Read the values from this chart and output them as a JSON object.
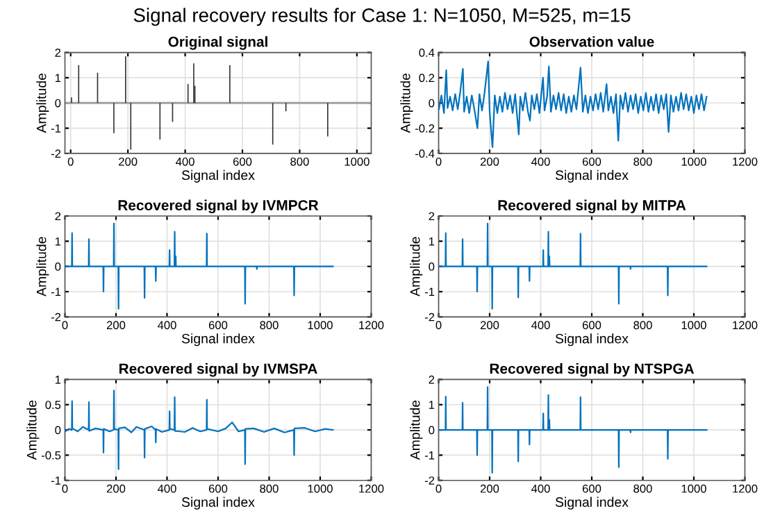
{
  "chart_data": [
    {
      "type": "bar",
      "title": "Original signal",
      "xlabel": "Signal index",
      "ylabel": "Amplitude",
      "annotations": [
        "Signal recovery results for Case 1: N=1050, M=525, m=15"
      ],
      "x": [
        3,
        28,
        94,
        151,
        192,
        210,
        312,
        356,
        410,
        430,
        434,
        556,
        706,
        752,
        898
      ],
      "series": [
        {
          "color": "#333333",
          "values": [
            0.22,
            1.5,
            1.2,
            -1.2,
            1.85,
            -1.85,
            -1.45,
            -0.75,
            0.75,
            1.57,
            0.68,
            1.5,
            -1.65,
            -0.33,
            -1.33
          ]
        }
      ],
      "ref_lines": [
        {
          "axis": "y",
          "value": 0,
          "color": "#a0a0a0"
        }
      ],
      "xlim": [
        -20,
        1050
      ],
      "ylim": [
        -2,
        2
      ],
      "xticks": [
        0,
        200,
        400,
        600,
        800,
        1000
      ],
      "yticks": [
        -2,
        -1,
        0,
        1,
        2
      ],
      "grid": true
    },
    {
      "type": "line",
      "title": "Observation value",
      "xlabel": "Signal index",
      "ylabel": "Amplitude",
      "series": [
        {
          "color": "#0072bd",
          "x": [
            1,
            11,
            21,
            30,
            35,
            45,
            55,
            65,
            75,
            85,
            95,
            100,
            110,
            120,
            130,
            140,
            152,
            160,
            170,
            180,
            194,
            200,
            211,
            220,
            230,
            240,
            250,
            260,
            270,
            280,
            290,
            300,
            314,
            320,
            330,
            340,
            350,
            358,
            365,
            375,
            385,
            395,
            409,
            415,
            425,
            432,
            440,
            450,
            460,
            470,
            480,
            490,
            500,
            510,
            520,
            530,
            540,
            556,
            565,
            575,
            585,
            595,
            605,
            615,
            625,
            635,
            645,
            658,
            665,
            675,
            685,
            695,
            704,
            712,
            722,
            732,
            742,
            752,
            762,
            772,
            782,
            792,
            802,
            812,
            822,
            832,
            842,
            852,
            862,
            872,
            882,
            892,
            901,
            910,
            920,
            930,
            940,
            950,
            960,
            970,
            980,
            990,
            1000,
            1010,
            1020,
            1030,
            1040,
            1050
          ],
          "values": [
            -0.05,
            0.06,
            -0.08,
            0.26,
            -0.04,
            0.05,
            -0.06,
            0.07,
            -0.05,
            0.09,
            0.27,
            -0.07,
            0.05,
            -0.08,
            0.06,
            -0.05,
            -0.2,
            0.07,
            -0.06,
            0.08,
            0.33,
            -0.07,
            -0.35,
            0.06,
            -0.08,
            0.05,
            -0.07,
            0.08,
            -0.05,
            0.06,
            -0.08,
            0.07,
            -0.25,
            0.05,
            -0.06,
            0.08,
            -0.07,
            -0.14,
            0.06,
            -0.05,
            0.07,
            -0.08,
            0.2,
            -0.06,
            0.05,
            0.29,
            -0.07,
            0.06,
            -0.05,
            0.08,
            -0.06,
            0.07,
            -0.08,
            0.05,
            -0.07,
            0.06,
            -0.05,
            0.28,
            -0.07,
            0.06,
            -0.08,
            0.05,
            -0.06,
            0.07,
            -0.05,
            0.08,
            -0.07,
            0.15,
            -0.06,
            0.05,
            -0.08,
            0.07,
            -0.3,
            0.06,
            -0.05,
            0.08,
            -0.07,
            0.06,
            -0.05,
            0.07,
            -0.08,
            0.05,
            -0.06,
            0.08,
            -0.07,
            0.05,
            -0.06,
            0.07,
            -0.08,
            0.06,
            -0.05,
            0.07,
            -0.23,
            0.06,
            -0.07,
            0.05,
            -0.06,
            0.08,
            -0.05,
            0.07,
            -0.06,
            0.05,
            -0.08,
            0.06,
            -0.05,
            0.07,
            -0.06,
            0.05
          ]
        }
      ],
      "xlim": [
        0,
        1200
      ],
      "ylim": [
        -0.4,
        0.4
      ],
      "xticks": [
        0,
        200,
        400,
        600,
        800,
        1000,
        1200
      ],
      "yticks": [
        -0.4,
        -0.2,
        0,
        0.2,
        0.4
      ],
      "grid": true
    },
    {
      "type": "line",
      "title": "Recovered signal by IVMPCR",
      "xlabel": "Signal index",
      "ylabel": "Amplitude",
      "series": [
        {
          "color": "#0072bd",
          "x": [
            1,
            27,
            28,
            29,
            93,
            94,
            95,
            150,
            151,
            152,
            191,
            192,
            193,
            209,
            210,
            211,
            311,
            312,
            313,
            355,
            356,
            357,
            409,
            410,
            411,
            429,
            430,
            431,
            433,
            434,
            435,
            555,
            556,
            557,
            705,
            706,
            707,
            751,
            752,
            753,
            897,
            898,
            899,
            1050
          ],
          "values": [
            0,
            0,
            1.32,
            0,
            0,
            1.08,
            0,
            0,
            -1.0,
            0,
            0,
            1.7,
            0,
            0,
            -1.68,
            0,
            0,
            -1.25,
            0,
            0,
            -0.58,
            0,
            0,
            0.65,
            0,
            0,
            1.38,
            0,
            0,
            0.4,
            0,
            0,
            1.3,
            0,
            0,
            -1.48,
            0,
            0,
            -0.1,
            0,
            0,
            -1.15,
            0,
            0
          ]
        }
      ],
      "xlim": [
        0,
        1200
      ],
      "ylim": [
        -2,
        2
      ],
      "xticks": [
        0,
        200,
        400,
        600,
        800,
        1000,
        1200
      ],
      "yticks": [
        -2,
        -1,
        0,
        1,
        2
      ],
      "grid": true
    },
    {
      "type": "line",
      "title": "Recovered signal by MITPA",
      "xlabel": "Signal index",
      "ylabel": "Amplitude",
      "series": [
        {
          "color": "#0072bd",
          "x": [
            1,
            27,
            28,
            29,
            93,
            94,
            95,
            150,
            151,
            152,
            191,
            192,
            193,
            209,
            210,
            211,
            311,
            312,
            313,
            355,
            356,
            357,
            409,
            410,
            411,
            429,
            430,
            431,
            433,
            434,
            435,
            555,
            556,
            557,
            705,
            706,
            707,
            751,
            752,
            753,
            897,
            898,
            899,
            1050
          ],
          "values": [
            0,
            0,
            1.32,
            0,
            0,
            1.08,
            0,
            0,
            -1.0,
            0,
            0,
            1.7,
            0,
            0,
            -1.68,
            0,
            0,
            -1.23,
            0,
            0,
            -0.58,
            0,
            0,
            0.65,
            0,
            0,
            1.38,
            0,
            0,
            0.4,
            0,
            0,
            1.3,
            0,
            0,
            -1.48,
            0,
            0,
            -0.1,
            0,
            0,
            -1.15,
            0,
            0
          ]
        }
      ],
      "xlim": [
        0,
        1200
      ],
      "ylim": [
        -2,
        2
      ],
      "xticks": [
        0,
        200,
        400,
        600,
        800,
        1000,
        1200
      ],
      "yticks": [
        -2,
        -1,
        0,
        1,
        2
      ],
      "grid": true
    },
    {
      "type": "line",
      "title": "Recovered signal by IVMSPA",
      "xlabel": "Signal index",
      "ylabel": "Amplitude",
      "series": [
        {
          "color": "#0072bd",
          "x": [
            1,
            15,
            27,
            28,
            29,
            50,
            70,
            93,
            94,
            95,
            120,
            150,
            151,
            152,
            175,
            191,
            192,
            193,
            209,
            210,
            211,
            235,
            260,
            280,
            311,
            312,
            313,
            340,
            355,
            356,
            357,
            380,
            409,
            410,
            411,
            429,
            430,
            431,
            470,
            500,
            530,
            555,
            556,
            557,
            600,
            630,
            655,
            680,
            705,
            706,
            707,
            740,
            780,
            820,
            860,
            897,
            898,
            899,
            940,
            980,
            1020,
            1050
          ],
          "values": [
            -0.03,
            0.02,
            0,
            0.57,
            0.03,
            -0.03,
            0.06,
            0,
            0.55,
            -0.02,
            0.03,
            0,
            -0.45,
            0.02,
            -0.03,
            0,
            0.78,
            0.02,
            0,
            -0.78,
            0.03,
            0.05,
            -0.05,
            0.06,
            0,
            -0.55,
            0.02,
            0.07,
            0,
            -0.25,
            0.02,
            -0.04,
            0,
            0.37,
            0.02,
            0,
            0.65,
            -0.02,
            -0.04,
            0.04,
            -0.03,
            0,
            0.6,
            0.02,
            -0.03,
            0.03,
            0.15,
            -0.03,
            0,
            -0.68,
            0.02,
            0.03,
            -0.04,
            0.03,
            -0.05,
            0,
            -0.5,
            0.03,
            0.04,
            -0.03,
            0.02,
            0
          ]
        }
      ],
      "xlim": [
        0,
        1200
      ],
      "ylim": [
        -1,
        1
      ],
      "xticks": [
        0,
        200,
        400,
        600,
        800,
        1000,
        1200
      ],
      "yticks": [
        -1,
        -0.5,
        0,
        0.5,
        1
      ],
      "grid": true
    },
    {
      "type": "line",
      "title": "Recovered signal by NTSPGA",
      "xlabel": "Signal index",
      "ylabel": "Amplitude",
      "series": [
        {
          "color": "#0072bd",
          "x": [
            1,
            27,
            28,
            29,
            93,
            94,
            95,
            150,
            151,
            152,
            191,
            192,
            193,
            209,
            210,
            211,
            311,
            312,
            313,
            355,
            356,
            357,
            409,
            410,
            411,
            429,
            430,
            431,
            433,
            434,
            435,
            555,
            556,
            557,
            705,
            706,
            707,
            751,
            752,
            753,
            897,
            898,
            899,
            1050
          ],
          "values": [
            0,
            0,
            1.32,
            0,
            0,
            1.08,
            0,
            0,
            -1.0,
            0,
            0,
            1.7,
            0,
            0,
            -1.7,
            0,
            0,
            -1.25,
            0,
            0,
            -0.58,
            0,
            0,
            0.65,
            0,
            0,
            1.38,
            0,
            0,
            0.4,
            0,
            0,
            1.3,
            0,
            0,
            -1.48,
            0,
            0,
            -0.1,
            0,
            0,
            -1.15,
            0,
            0
          ]
        }
      ],
      "xlim": [
        0,
        1200
      ],
      "ylim": [
        -2,
        2
      ],
      "xticks": [
        0,
        200,
        400,
        600,
        800,
        1000,
        1200
      ],
      "yticks": [
        -2,
        -1,
        0,
        1,
        2
      ],
      "grid": true
    }
  ]
}
